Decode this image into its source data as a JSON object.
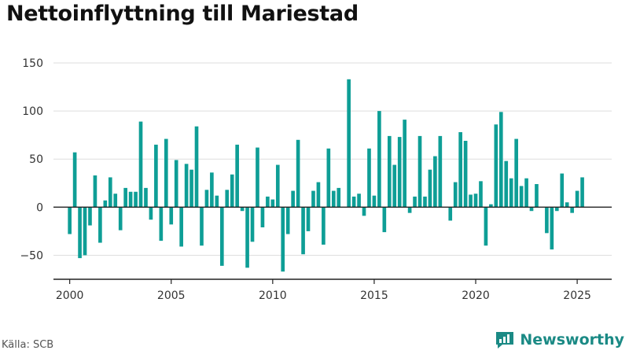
{
  "title": "Nettoinflyttning till Mariestad",
  "source": "Källa: SCB",
  "brand": "Newsworthy",
  "colors": {
    "bar": "#0e9e96",
    "grid": "#dedede",
    "axis": "#222222",
    "brand": "#1b8a85"
  },
  "chart_data": {
    "type": "bar",
    "title": "Nettoinflyttning till Mariestad",
    "xlabel": "",
    "ylabel": "",
    "ylim": [
      -75,
      150
    ],
    "yticks": [
      -50,
      0,
      50,
      100,
      150
    ],
    "xticks": [
      2000,
      2005,
      2010,
      2015,
      2020,
      2025
    ],
    "grid": true,
    "x_start": 2000.0,
    "x_step": 0.25,
    "values": [
      -28,
      57,
      -53,
      -50,
      -19,
      33,
      -37,
      7,
      31,
      14,
      -24,
      20,
      16,
      16,
      89,
      20,
      -13,
      65,
      -35,
      71,
      -18,
      49,
      -41,
      45,
      39,
      84,
      -40,
      18,
      36,
      12,
      -61,
      18,
      34,
      65,
      -4,
      -63,
      -36,
      62,
      -21,
      11,
      8,
      44,
      -67,
      -28,
      17,
      70,
      -49,
      -25,
      17,
      26,
      -39,
      61,
      17,
      20,
      0,
      133,
      11,
      14,
      -9,
      61,
      12,
      100,
      -26,
      74,
      44,
      73,
      91,
      -6,
      11,
      74,
      11,
      39,
      53,
      74,
      0,
      -14,
      26,
      78,
      69,
      13,
      14,
      27,
      -40,
      3,
      86,
      99,
      48,
      30,
      71,
      22,
      30,
      -4,
      24,
      0,
      -27,
      -44,
      -4,
      35,
      5,
      -6,
      17,
      31
    ]
  }
}
